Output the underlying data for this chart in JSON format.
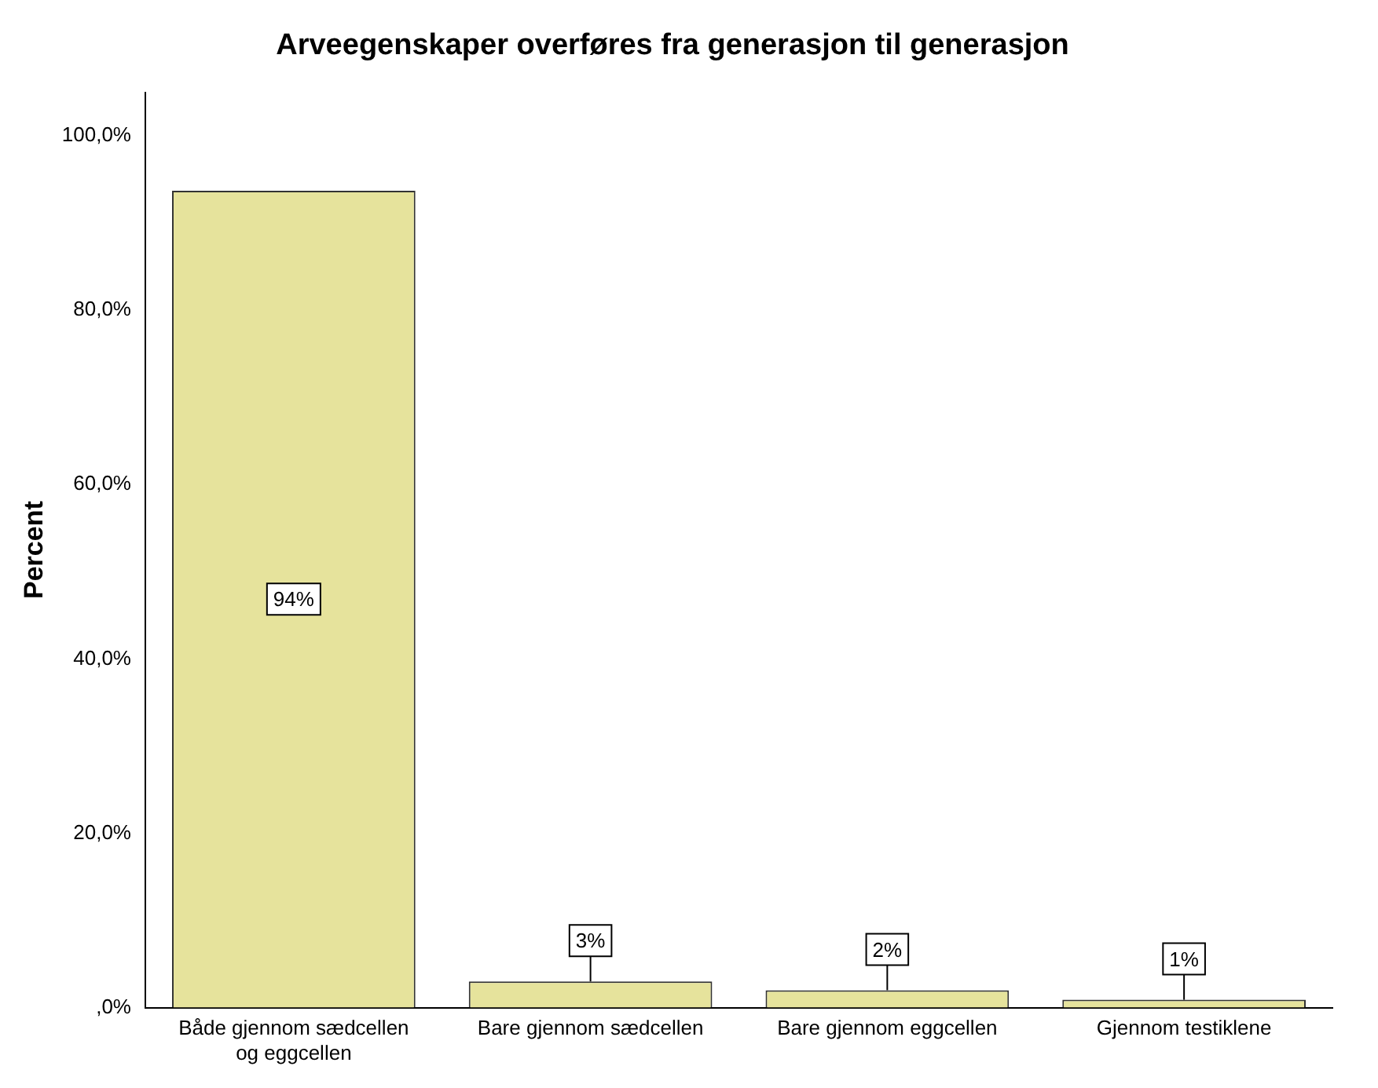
{
  "chart_data": {
    "type": "bar",
    "title": "Arveegenskaper overføres fra generasjon til generasjon",
    "ylabel": "Percent",
    "categories": [
      "Både gjennom sædcellen og eggcellen",
      "Bare gjennom sædcellen",
      "Bare gjennom eggcellen",
      "Gjennom testiklene"
    ],
    "values": [
      93.7,
      3.0,
      2.0,
      0.9
    ],
    "value_labels": [
      "94%",
      "3%",
      "2%",
      "1%"
    ],
    "color": "#e6e39c",
    "ylim": [
      0,
      105
    ],
    "yticks": [
      {
        "value": 0,
        "label": ",0%"
      },
      {
        "value": 20,
        "label": "20,0%"
      },
      {
        "value": 40,
        "label": "40,0%"
      },
      {
        "value": 60,
        "label": "60,0%"
      },
      {
        "value": 80,
        "label": "80,0%"
      },
      {
        "value": 100,
        "label": "100,0%"
      }
    ],
    "grid": false,
    "legend": false
  }
}
